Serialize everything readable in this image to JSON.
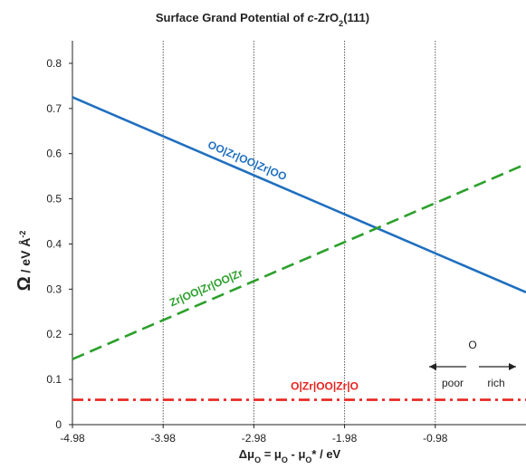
{
  "chart_data": {
    "type": "line",
    "title": {
      "pre": "Surface Grand Potential of ",
      "italic": "c",
      "post": "-ZrO",
      "sub": "2",
      "tail": "(111)"
    },
    "xlabel": {
      "pre": "Δμ",
      "sub1": "O",
      "mid": " = μ",
      "sub2": "O",
      "post": " - μ",
      "sub3": "O",
      "tail": "* / eV"
    },
    "ylabel": {
      "main": "Ω",
      "units": " / eV Å",
      "sup": "-2"
    },
    "xlim": [
      -4.98,
      0.02
    ],
    "ylim": [
      0,
      0.85
    ],
    "xticks": [
      -4.98,
      -3.98,
      -2.98,
      -1.98,
      -0.98
    ],
    "xtick_labels": [
      "-4.98",
      "-3.98",
      "-2.98",
      "-1.98",
      "-0.98"
    ],
    "yticks": [
      0,
      0.1,
      0.2,
      0.3,
      0.4,
      0.5,
      0.6,
      0.7,
      0.8
    ],
    "ytick_labels": [
      "0",
      "0.1",
      "0.2",
      "0.3",
      "0.4",
      "0.5",
      "0.6",
      "0.7",
      "0.8"
    ],
    "vertical_gridlines": [
      -3.98,
      -2.98,
      -1.98,
      -0.98
    ],
    "series": [
      {
        "label": "OO|Zr|OO|Zr|OO",
        "color": "#1f6fbf",
        "style": "solid",
        "x": [
          -4.98,
          0.02
        ],
        "y": [
          0.725,
          0.293
        ]
      },
      {
        "label": "Zr|OO|Zr|OO|Zr",
        "color": "#2ca02c",
        "style": "dashed",
        "x": [
          -4.98,
          0.02
        ],
        "y": [
          0.145,
          0.577
        ]
      },
      {
        "label": "O|Zr|OO|Zr|O",
        "color": "#e8231f",
        "style": "dashdot",
        "x": [
          -4.98,
          0.02
        ],
        "y": [
          0.055,
          0.055
        ]
      }
    ],
    "annotations": {
      "element": "O",
      "poor": "poor",
      "rich": "rich"
    }
  }
}
